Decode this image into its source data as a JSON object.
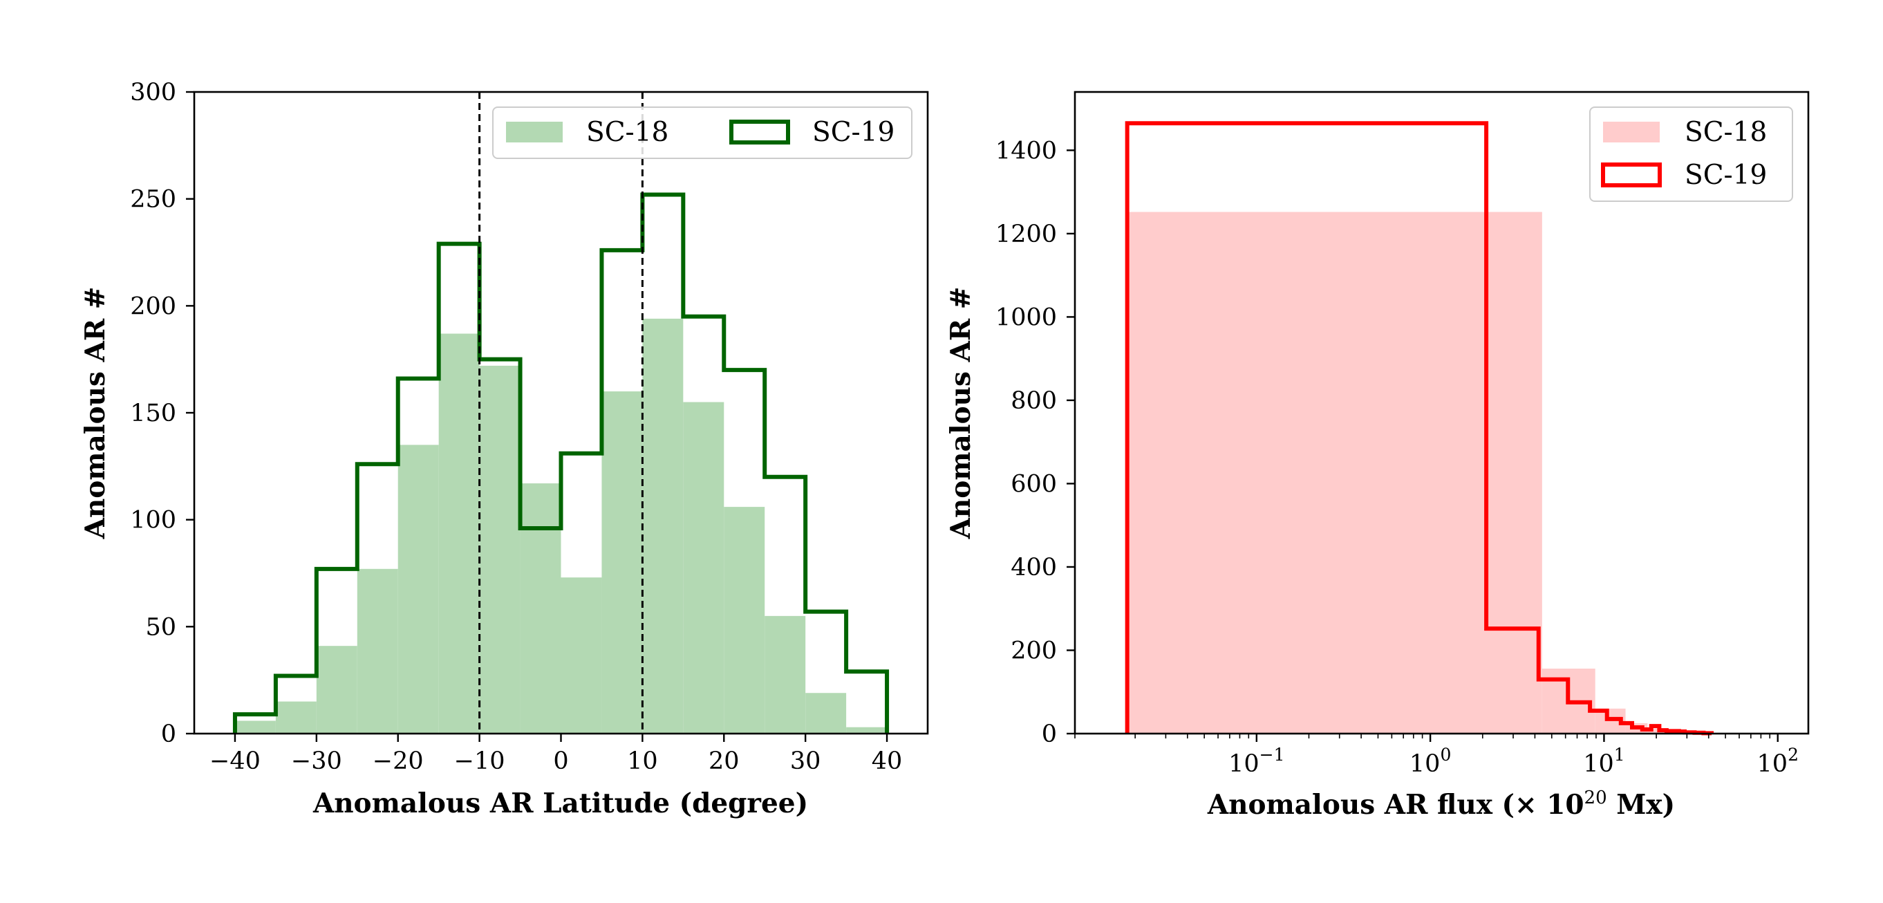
{
  "chart_data": [
    {
      "type": "histogram",
      "xlabel": "Anomalous AR Latitude (degree)",
      "ylabel": "Anomalous AR #",
      "xlim": [
        -45,
        45
      ],
      "ylim": [
        0,
        300
      ],
      "xticks": [
        -40,
        -30,
        -20,
        -10,
        0,
        10,
        20,
        30,
        40
      ],
      "xtick_labels": [
        "−40",
        "−30",
        "−20",
        "−10",
        "0",
        "10",
        "20",
        "30",
        "40"
      ],
      "yticks": [
        0,
        50,
        100,
        150,
        200,
        250,
        300
      ],
      "ytick_labels": [
        "0",
        "50",
        "100",
        "150",
        "200",
        "250",
        "300"
      ],
      "bin_edges": [
        -40,
        -35,
        -30,
        -25,
        -20,
        -15,
        -10,
        -5,
        0,
        5,
        10,
        15,
        20,
        25,
        30,
        35,
        40
      ],
      "series": [
        {
          "name": "SC-18",
          "style": "filled",
          "color": "#b3d9b3",
          "values": [
            6,
            15,
            41,
            77,
            135,
            187,
            172,
            117,
            73,
            160,
            194,
            155,
            106,
            55,
            19,
            3
          ]
        },
        {
          "name": "SC-19",
          "style": "step",
          "color": "#006400",
          "values": [
            9,
            27,
            77,
            126,
            166,
            229,
            175,
            96,
            131,
            226,
            252,
            195,
            170,
            120,
            57,
            29
          ]
        }
      ],
      "vlines": [
        -10,
        10
      ],
      "legend": {
        "position": "top-right",
        "columns": 2,
        "labels": [
          "SC-18",
          "SC-19"
        ]
      }
    },
    {
      "type": "histogram",
      "xscale": "log",
      "xlabel": "Anomalous AR flux (× 10",
      "xlabel_sup": "20",
      "xlabel_tail": " Mx)",
      "ylabel": "Anomalous AR #",
      "xlim": [
        0.009,
        150
      ],
      "ylim": [
        0,
        1540
      ],
      "major_xticks": [
        0.1,
        1,
        10,
        100
      ],
      "xtick_labels": [
        {
          "base": "10",
          "exp": "−1"
        },
        {
          "base": "10",
          "exp": "0"
        },
        {
          "base": "10",
          "exp": "1"
        },
        {
          "base": "10",
          "exp": "2"
        }
      ],
      "yticks": [
        0,
        200,
        400,
        600,
        800,
        1000,
        1200,
        1400
      ],
      "ytick_labels": [
        "0",
        "200",
        "400",
        "600",
        "800",
        "1000",
        "1200",
        "1400"
      ],
      "series": [
        {
          "name": "SC-18",
          "style": "filled",
          "color": "#ffcccc",
          "edges": [
            0.018,
            4.4,
            8.9,
            13.3,
            17.8,
            22.2,
            26.7,
            31.1,
            35.5,
            40
          ],
          "values": [
            1252,
            156,
            60,
            25,
            12,
            6,
            4,
            2,
            1
          ]
        },
        {
          "name": "SC-19",
          "style": "step",
          "color": "#ff0000",
          "edges": [
            0.018,
            2.1,
            4.2,
            6.2,
            8.3,
            10.4,
            12.5,
            14.5,
            16.6,
            18.7,
            20.8,
            22.9,
            24.9,
            27,
            29.1,
            31.2,
            33.2,
            35.3,
            37.4,
            39.5,
            41.6
          ],
          "values": [
            1465,
            252,
            130,
            75,
            55,
            35,
            25,
            15,
            10,
            18,
            8,
            6,
            6,
            5,
            3,
            3,
            2,
            2,
            1,
            1
          ]
        }
      ],
      "legend": {
        "position": "top-right",
        "columns": 1,
        "labels": [
          "SC-18",
          "SC-19"
        ]
      }
    }
  ]
}
